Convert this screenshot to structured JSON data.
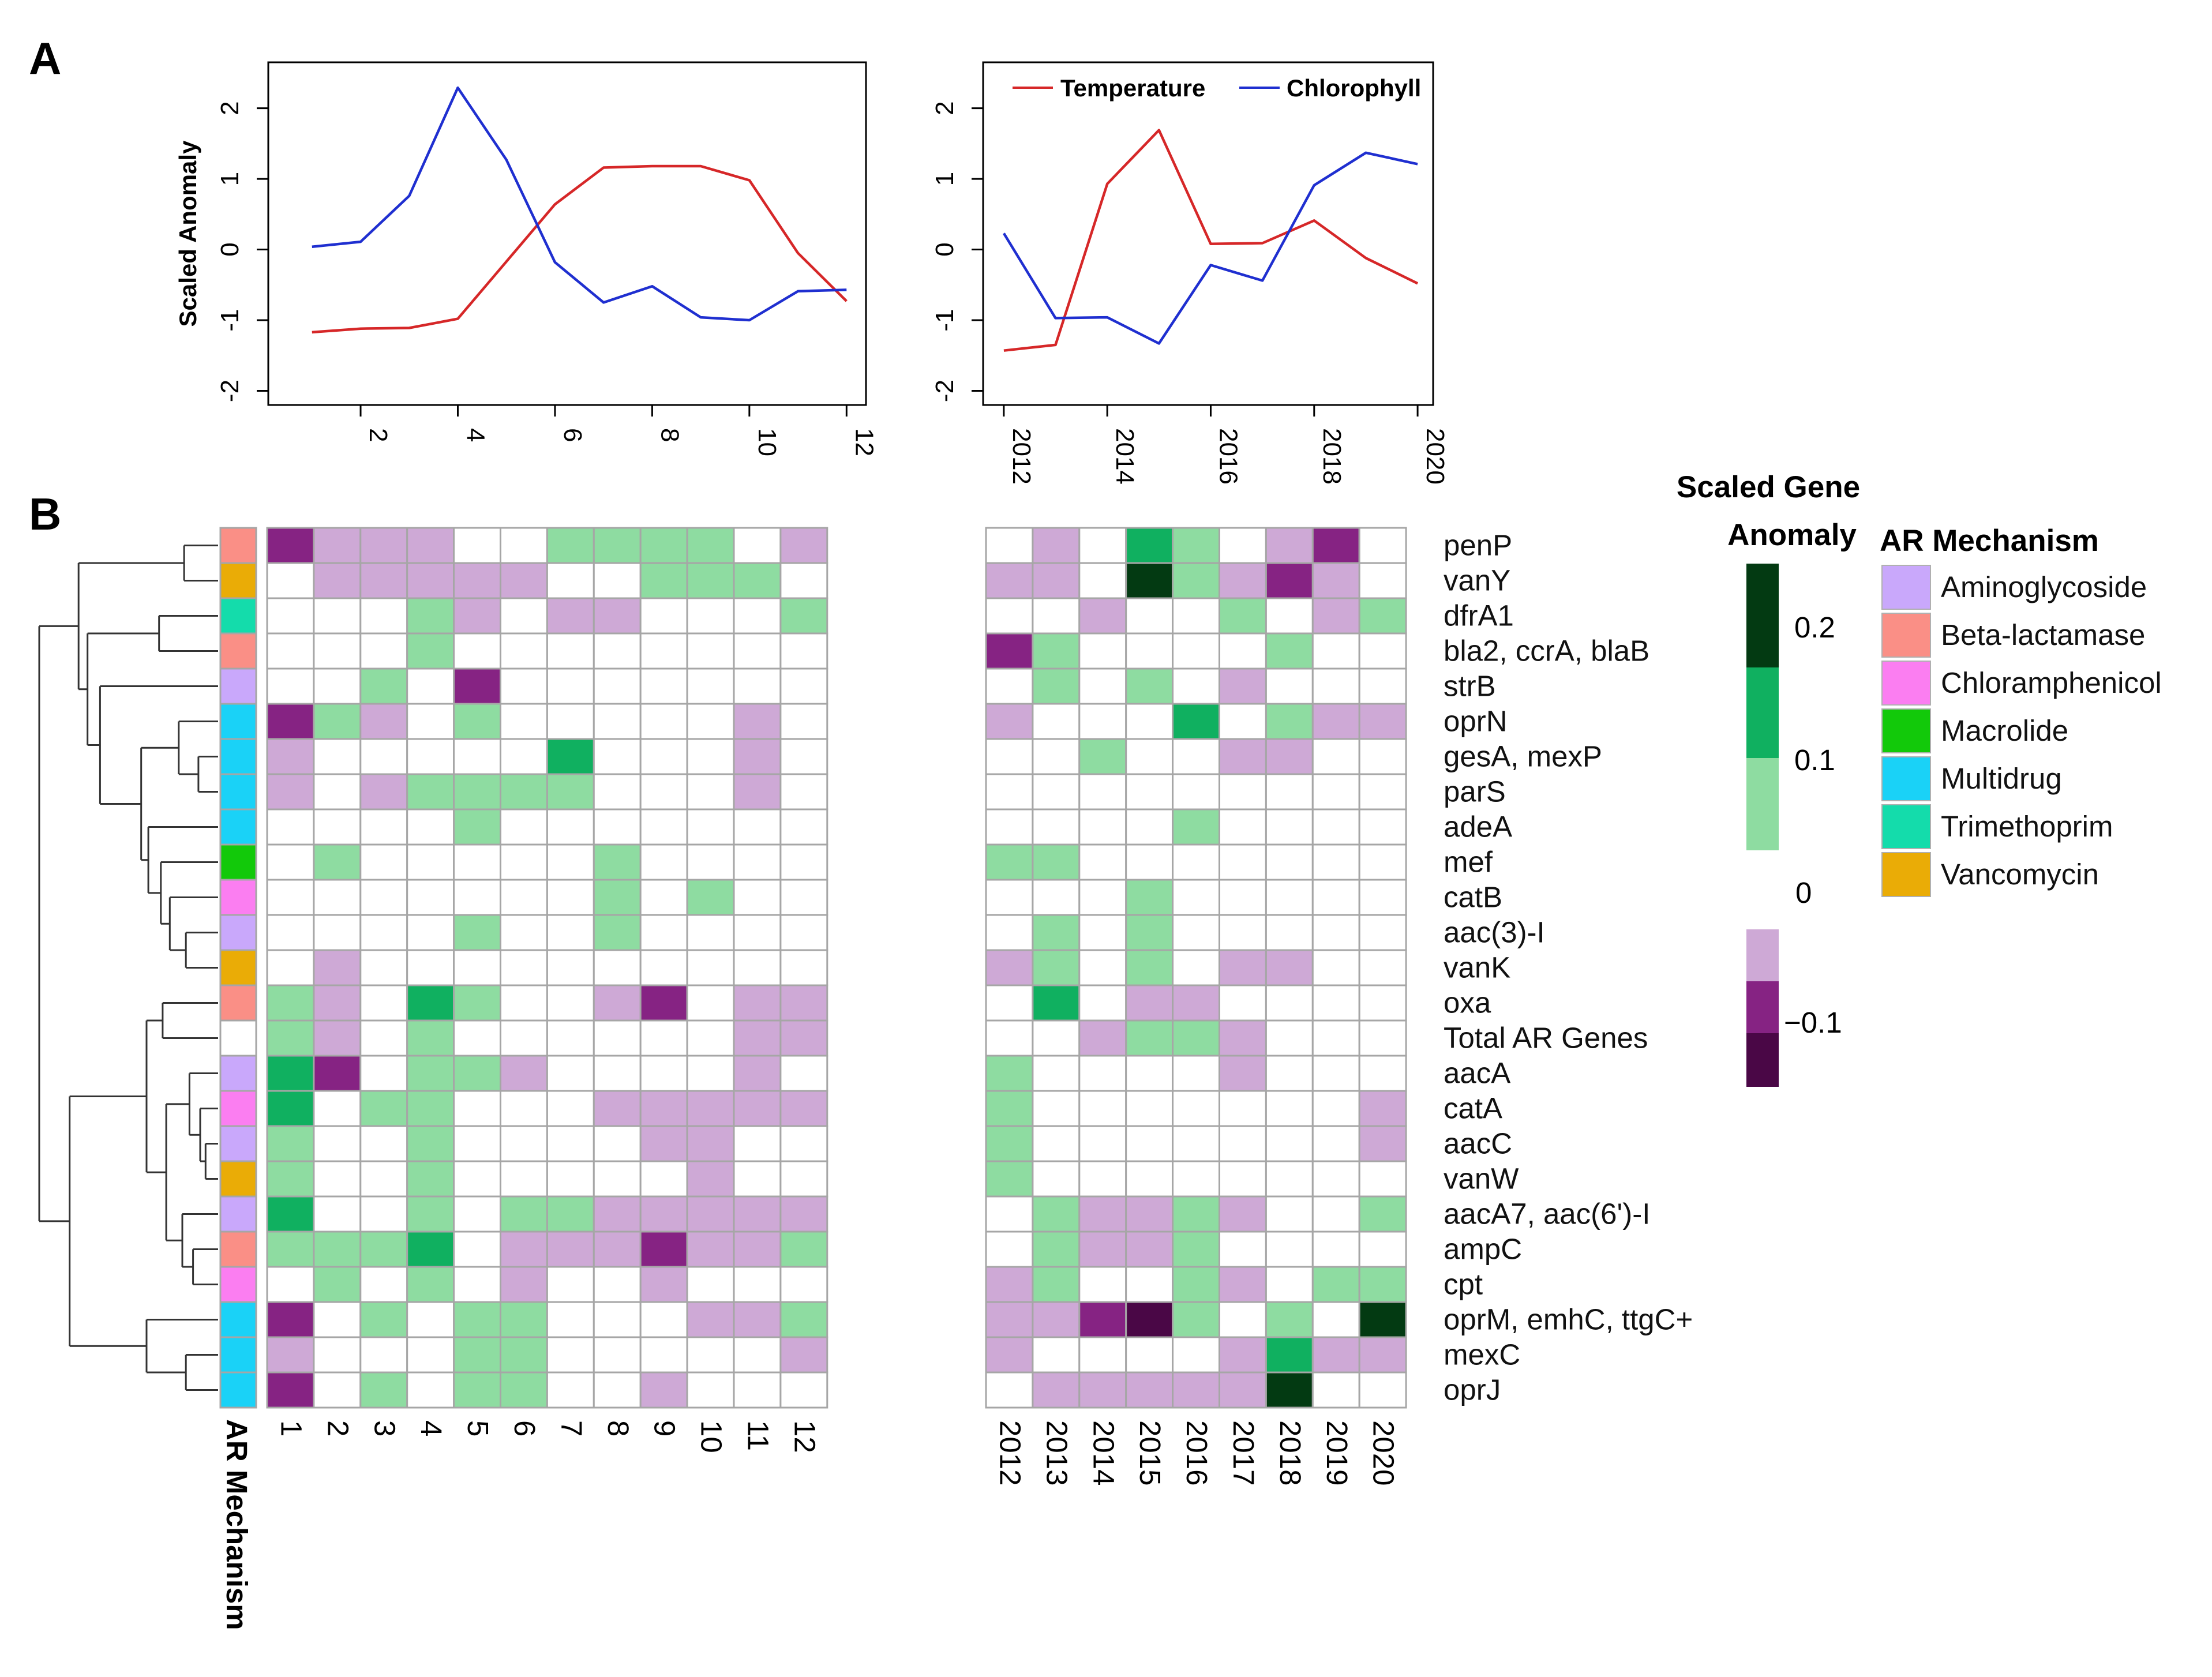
{
  "panel_labels": {
    "a": "A",
    "b": "B"
  },
  "colors": {
    "temperature": "#d62728",
    "chlorophyll": "#1f2fd0",
    "grid": "#a6a6a6",
    "heat": {
      "-3": "#4a0746",
      "-2": "#862383",
      "-1": "#cea9d6",
      "0": "#ffffff",
      "1": "#8edca1",
      "2": "#10b060",
      "3": "#033a12"
    }
  },
  "chart_data": [
    {
      "type": "line",
      "id": "monthly",
      "ylabel": "Scaled Anomaly",
      "ylim": [
        -2.2,
        2.65
      ],
      "xlim": [
        0.1,
        12.4
      ],
      "yticks": [
        -2,
        -1,
        0,
        1,
        2
      ],
      "xticks": [
        2,
        4,
        6,
        8,
        10,
        12
      ],
      "x": [
        1,
        2,
        3,
        4,
        5,
        6,
        7,
        8,
        9,
        10,
        11,
        12
      ],
      "series": [
        {
          "name": "Temperature",
          "values": [
            -1.17,
            -1.12,
            -1.11,
            -0.98,
            -0.17,
            0.64,
            1.16,
            1.18,
            1.18,
            0.98,
            -0.05,
            -0.73
          ]
        },
        {
          "name": "Chlorophyll",
          "values": [
            0.04,
            0.11,
            0.76,
            2.29,
            1.27,
            -0.18,
            -0.75,
            -0.52,
            -0.96,
            -1.0,
            -0.59,
            -0.57
          ]
        }
      ]
    },
    {
      "type": "line",
      "id": "annual",
      "ylim": [
        -2.2,
        2.65
      ],
      "xlim": [
        2011.6,
        2020.3
      ],
      "yticks": [
        -2,
        -1,
        0,
        1,
        2
      ],
      "xticks": [
        2012,
        2014,
        2016,
        2018,
        2020
      ],
      "legend": {
        "placement": "top",
        "entries": [
          "Temperature",
          "Chlorophyll"
        ]
      },
      "x": [
        2012,
        2013,
        2014,
        2015,
        2016,
        2017,
        2018,
        2019,
        2020
      ],
      "series": [
        {
          "name": "Temperature",
          "values": [
            -1.43,
            -1.35,
            0.93,
            1.69,
            0.08,
            0.09,
            0.41,
            -0.12,
            -0.48
          ]
        },
        {
          "name": "Chlorophyll",
          "values": [
            0.23,
            -0.97,
            -0.96,
            -1.33,
            -0.22,
            -0.44,
            0.91,
            1.37,
            1.21
          ]
        }
      ]
    },
    {
      "type": "heatmap",
      "id": "gene-anomaly",
      "row_labels": [
        "penP",
        "vanY",
        "dfrA1",
        "bla2, ccrA, blaB",
        "strB",
        "oprN",
        "gesA, mexP",
        "parS",
        "adeA",
        "mef",
        "catB",
        "aac(3)-I",
        "vanK",
        "oxa",
        "Total AR Genes",
        "aacA",
        "catA",
        "aacC",
        "vanW",
        "aacA7, aac(6')-I",
        "ampC",
        "cpt",
        "oprM, emhC, ttgC+",
        "mexC",
        "oprJ"
      ],
      "row_mechanisms": [
        "Beta-lactamase",
        "Vancomycin",
        "Trimethoprim",
        "Beta-lactamase",
        "Aminoglycoside",
        "Multidrug",
        "Multidrug",
        "Multidrug",
        "Multidrug",
        "Macrolide",
        "Chloramphenicol",
        "Aminoglycoside",
        "Vancomycin",
        "Beta-lactamase",
        "",
        "Aminoglycoside",
        "Chloramphenicol",
        "Aminoglycoside",
        "Vancomycin",
        "Aminoglycoside",
        "Beta-lactamase",
        "Chloramphenicol",
        "Multidrug",
        "Multidrug",
        "Multidrug"
      ],
      "months": [
        "1",
        "2",
        "3",
        "4",
        "5",
        "6",
        "7",
        "8",
        "9",
        "10",
        "11",
        "12"
      ],
      "years": [
        "2012",
        "2013",
        "2014",
        "2015",
        "2016",
        "2017",
        "2018",
        "2019",
        "2020"
      ],
      "level_scale": "ordinal bins: -3 darkest purple (< -0.1), -2 purple, -1 light purple, 0 white, 1 light green, 2 green, 3 darkest green (> 0.2)",
      "monthly_values": [
        [
          -2,
          -1,
          -1,
          -1,
          0,
          0,
          1,
          1,
          1,
          1,
          0,
          -1
        ],
        [
          0,
          -1,
          -1,
          -1,
          -1,
          -1,
          0,
          0,
          1,
          1,
          1,
          0
        ],
        [
          0,
          0,
          0,
          1,
          -1,
          0,
          -1,
          -1,
          0,
          0,
          0,
          1
        ],
        [
          0,
          0,
          0,
          1,
          0,
          0,
          0,
          0,
          0,
          0,
          0,
          0
        ],
        [
          0,
          0,
          1,
          0,
          -2,
          0,
          0,
          0,
          0,
          0,
          0,
          0
        ],
        [
          -2,
          1,
          -1,
          0,
          1,
          0,
          0,
          0,
          0,
          0,
          -1,
          0
        ],
        [
          -1,
          0,
          0,
          0,
          0,
          0,
          2,
          0,
          0,
          0,
          -1,
          0
        ],
        [
          -1,
          0,
          -1,
          1,
          1,
          1,
          1,
          0,
          0,
          0,
          -1,
          0
        ],
        [
          0,
          0,
          0,
          0,
          1,
          0,
          0,
          0,
          0,
          0,
          0,
          0
        ],
        [
          0,
          1,
          0,
          0,
          0,
          0,
          0,
          1,
          0,
          0,
          0,
          0
        ],
        [
          0,
          0,
          0,
          0,
          0,
          0,
          0,
          1,
          0,
          1,
          0,
          0
        ],
        [
          0,
          0,
          0,
          0,
          1,
          0,
          0,
          1,
          0,
          0,
          0,
          0
        ],
        [
          0,
          -1,
          0,
          0,
          0,
          0,
          0,
          0,
          0,
          0,
          0,
          0
        ],
        [
          1,
          -1,
          0,
          2,
          1,
          0,
          0,
          -1,
          -2,
          0,
          -1,
          -1
        ],
        [
          1,
          -1,
          0,
          1,
          0,
          0,
          0,
          0,
          0,
          0,
          -1,
          -1
        ],
        [
          2,
          -2,
          0,
          1,
          1,
          -1,
          0,
          0,
          0,
          0,
          -1,
          0
        ],
        [
          2,
          0,
          1,
          1,
          0,
          0,
          0,
          -1,
          -1,
          -1,
          -1,
          -1
        ],
        [
          1,
          0,
          0,
          1,
          0,
          0,
          0,
          0,
          -1,
          -1,
          0,
          0
        ],
        [
          1,
          0,
          0,
          1,
          0,
          0,
          0,
          0,
          0,
          -1,
          0,
          0
        ],
        [
          2,
          0,
          0,
          1,
          0,
          1,
          1,
          -1,
          -1,
          -1,
          -1,
          -1
        ],
        [
          1,
          1,
          1,
          2,
          0,
          -1,
          -1,
          -1,
          -2,
          -1,
          -1,
          1
        ],
        [
          0,
          1,
          0,
          1,
          0,
          -1,
          0,
          0,
          -1,
          0,
          0,
          0
        ],
        [
          -2,
          0,
          1,
          0,
          1,
          1,
          0,
          0,
          0,
          -1,
          -1,
          1
        ],
        [
          -1,
          0,
          0,
          0,
          1,
          1,
          0,
          0,
          0,
          0,
          0,
          -1
        ],
        [
          -2,
          0,
          1,
          0,
          1,
          1,
          0,
          0,
          -1,
          0,
          0,
          0
        ]
      ],
      "annual_values": [
        [
          0,
          -1,
          0,
          2,
          1,
          0,
          -1,
          -2,
          0
        ],
        [
          -1,
          -1,
          0,
          3,
          1,
          -1,
          -2,
          -1,
          0
        ],
        [
          0,
          0,
          -1,
          0,
          0,
          1,
          0,
          -1,
          1
        ],
        [
          -2,
          1,
          0,
          0,
          0,
          0,
          1,
          0,
          0
        ],
        [
          0,
          1,
          0,
          1,
          0,
          -1,
          0,
          0,
          0
        ],
        [
          -1,
          0,
          0,
          0,
          2,
          0,
          1,
          -1,
          -1
        ],
        [
          0,
          0,
          1,
          0,
          0,
          -1,
          -1,
          0,
          0
        ],
        [
          0,
          0,
          0,
          0,
          0,
          0,
          0,
          0,
          0
        ],
        [
          0,
          0,
          0,
          0,
          1,
          0,
          0,
          0,
          0
        ],
        [
          1,
          1,
          0,
          0,
          0,
          0,
          0,
          0,
          0
        ],
        [
          0,
          0,
          0,
          1,
          0,
          0,
          0,
          0,
          0
        ],
        [
          0,
          1,
          0,
          1,
          0,
          0,
          0,
          0,
          0
        ],
        [
          -1,
          1,
          0,
          1,
          0,
          -1,
          -1,
          0,
          0
        ],
        [
          0,
          2,
          0,
          -1,
          -1,
          0,
          0,
          0,
          0
        ],
        [
          0,
          0,
          -1,
          1,
          1,
          -1,
          0,
          0,
          0
        ],
        [
          1,
          0,
          0,
          0,
          0,
          -1,
          0,
          0,
          0
        ],
        [
          1,
          0,
          0,
          0,
          0,
          0,
          0,
          0,
          -1
        ],
        [
          1,
          0,
          0,
          0,
          0,
          0,
          0,
          0,
          -1
        ],
        [
          1,
          0,
          0,
          0,
          0,
          0,
          0,
          0,
          0
        ],
        [
          0,
          1,
          -1,
          -1,
          1,
          -1,
          0,
          0,
          1
        ],
        [
          0,
          1,
          -1,
          -1,
          1,
          0,
          0,
          0,
          0
        ],
        [
          -1,
          1,
          0,
          0,
          1,
          -1,
          0,
          1,
          1
        ],
        [
          -1,
          -1,
          -2,
          -3,
          1,
          0,
          1,
          0,
          3
        ],
        [
          -1,
          0,
          0,
          0,
          0,
          -1,
          2,
          -1,
          -1
        ],
        [
          0,
          -1,
          -1,
          -1,
          -1,
          -1,
          3,
          0,
          0
        ]
      ]
    }
  ],
  "scale_legend": {
    "title_line1": "Scaled Gene",
    "title_line2": "Anomaly",
    "labels": [
      "0.2",
      "0.1",
      "0",
      "−0.1"
    ]
  },
  "mechanism_legend": {
    "title": "AR Mechanism",
    "items": [
      {
        "name": "Aminoglycoside",
        "color": "#c9a8fb"
      },
      {
        "name": "Beta-lactamase",
        "color": "#fa8f86"
      },
      {
        "name": "Chloramphenicol",
        "color": "#fb7ef1"
      },
      {
        "name": "Macrolide",
        "color": "#12c90a"
      },
      {
        "name": "Multidrug",
        "color": "#1ad2f7"
      },
      {
        "name": "Trimethoprim",
        "color": "#14dcab"
      },
      {
        "name": "Vancomycin",
        "color": "#eaac06"
      }
    ]
  },
  "mechanism_axis_label": "AR Mechanism"
}
